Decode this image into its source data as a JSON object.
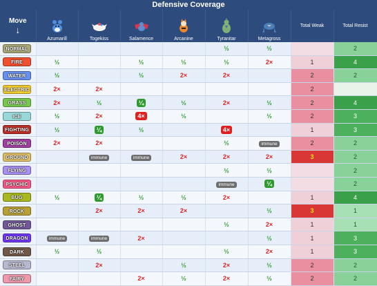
{
  "title": "Defensive Coverage",
  "header": {
    "move_label": "Move",
    "move_arrow": "↓",
    "total_weak": "Total Weak",
    "total_resist": "Total Resist"
  },
  "pokemon": [
    {
      "name": "Azumarill",
      "icon": "azumarill-icon"
    },
    {
      "name": "Togekiss",
      "icon": "togekiss-icon"
    },
    {
      "name": "Salamence",
      "icon": "salamence-icon"
    },
    {
      "name": "Arcanine",
      "icon": "arcanine-icon"
    },
    {
      "name": "Tyranitar",
      "icon": "tyranitar-icon"
    },
    {
      "name": "Metagross",
      "icon": "metagross-icon"
    }
  ],
  "type_colors": {
    "NORMAL": "#A8A878",
    "FIRE": "#F05030",
    "WATER": "#6890F0",
    "ELECTRIC": "#F8D030",
    "GRASS": "#78C850",
    "ICE": "#98D8D8",
    "FIGHTING": "#C03028",
    "POISON": "#A040A0",
    "GROUND": "#E0C068",
    "FLYING": "#A890F0",
    "PSYCHIC": "#F85888",
    "BUG": "#A8B820",
    "ROCK": "#B8A038",
    "GHOST": "#705898",
    "DRAGON": "#7038F8",
    "DARK": "#705848",
    "STEEL": "#B8B8D0",
    "FAIRY": "#EE99AC"
  },
  "rows": [
    {
      "type": "NORMAL",
      "cells": [
        "",
        "",
        "",
        "",
        "½",
        "½"
      ],
      "weak": "",
      "resist": "2"
    },
    {
      "type": "FIRE",
      "cells": [
        "½",
        "",
        "½",
        "½",
        "½",
        "2×"
      ],
      "weak": "1",
      "resist": "4"
    },
    {
      "type": "WATER",
      "cells": [
        "½",
        "",
        "½",
        "2×",
        "2×",
        ""
      ],
      "weak": "2",
      "resist": "2"
    },
    {
      "type": "ELECTRIC",
      "cells": [
        "2×",
        "2×",
        "",
        "",
        "",
        ""
      ],
      "weak": "2",
      "resist": ""
    },
    {
      "type": "GRASS",
      "cells": [
        "2×",
        "½",
        "¼",
        "½",
        "2×",
        "½"
      ],
      "weak": "2",
      "resist": "4"
    },
    {
      "type": "ICE",
      "cells": [
        "½",
        "2×",
        "4×",
        "½",
        "",
        "½"
      ],
      "weak": "2",
      "resist": "3"
    },
    {
      "type": "FIGHTING",
      "cells": [
        "½",
        "¼",
        "½",
        "",
        "4×",
        ""
      ],
      "weak": "1",
      "resist": "3"
    },
    {
      "type": "POISON",
      "cells": [
        "2×",
        "2×",
        "",
        "",
        "½",
        "immune"
      ],
      "weak": "2",
      "resist": "2"
    },
    {
      "type": "GROUND",
      "cells": [
        "",
        "immune",
        "immune",
        "2×",
        "2×",
        "2×"
      ],
      "weak": "3",
      "resist": "2"
    },
    {
      "type": "FLYING",
      "cells": [
        "",
        "",
        "",
        "",
        "½",
        "½"
      ],
      "weak": "",
      "resist": "2"
    },
    {
      "type": "PSYCHIC",
      "cells": [
        "",
        "",
        "",
        "",
        "immune",
        "¼"
      ],
      "weak": "",
      "resist": "2"
    },
    {
      "type": "BUG",
      "cells": [
        "½",
        "¼",
        "½",
        "½",
        "2×",
        ""
      ],
      "weak": "1",
      "resist": "4"
    },
    {
      "type": "ROCK",
      "cells": [
        "",
        "2×",
        "2×",
        "2×",
        "",
        "½"
      ],
      "weak": "3",
      "resist": "1"
    },
    {
      "type": "GHOST",
      "cells": [
        "",
        "",
        "",
        "",
        "½",
        "2×"
      ],
      "weak": "1",
      "resist": "1"
    },
    {
      "type": "DRAGON",
      "cells": [
        "immune",
        "immune",
        "2×",
        "",
        "",
        "½"
      ],
      "weak": "1",
      "resist": "3"
    },
    {
      "type": "DARK",
      "cells": [
        "½",
        "½",
        "",
        "",
        "½",
        "2×"
      ],
      "weak": "1",
      "resist": "3"
    },
    {
      "type": "STEEL",
      "cells": [
        "",
        "2×",
        "",
        "½",
        "2×",
        "½"
      ],
      "weak": "2",
      "resist": "2"
    },
    {
      "type": "FAIRY",
      "cells": [
        "",
        "",
        "2×",
        "½",
        "2×",
        "½"
      ],
      "weak": "2",
      "resist": "2"
    }
  ],
  "special_cells": {
    "boxed_quarter": [
      [
        4,
        2
      ],
      [
        6,
        1
      ],
      [
        10,
        5
      ],
      [
        11,
        1
      ]
    ],
    "boxed_four": [
      [
        5,
        2
      ],
      [
        6,
        4
      ]
    ]
  }
}
